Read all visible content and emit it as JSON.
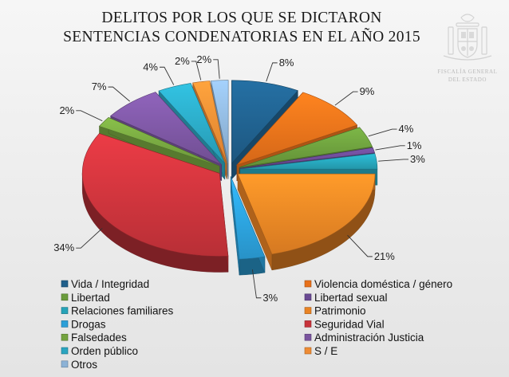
{
  "chart_data": {
    "type": "pie",
    "title_lines": [
      "DELITOS  POR LOS QUE SE DICTARON",
      "SENTENCIAS CONDENATORIAS EN EL AÑO 2015"
    ],
    "start_angle_deg": 0,
    "slices": [
      {
        "name": "Vida / Integridad",
        "value": 8,
        "label": "8%",
        "color": "#1f5f8b"
      },
      {
        "name": "Violencia doméstica / género",
        "value": 9,
        "label": "9%",
        "color": "#e8701a"
      },
      {
        "name": "Libertad",
        "value": 4,
        "label": "4%",
        "color": "#6a9b3c"
      },
      {
        "name": "Libertad sexual",
        "value": 1,
        "label": "1%",
        "color": "#6a4a93"
      },
      {
        "name": "Relaciones familiares",
        "value": 3,
        "label": "3%",
        "color": "#26a3b8"
      },
      {
        "name": "Patrimonio",
        "value": 21,
        "label": "21%",
        "color": "#e98324"
      },
      {
        "name": "Drogas",
        "value": 3,
        "label": "3%",
        "color": "#2b9fd8"
      },
      {
        "name": "Seguridad Vial",
        "value": 34,
        "label": "34%",
        "color": "#c8333b"
      },
      {
        "name": "Falsedades",
        "value": 2,
        "label": "2%",
        "color": "#74a33f"
      },
      {
        "name": "Administración Justicia",
        "value": 7,
        "label": "7%",
        "color": "#7a559f"
      },
      {
        "name": "Orden público",
        "value": 4,
        "label": "4%",
        "color": "#2aa5c0"
      },
      {
        "name": "S / E",
        "value": 2,
        "label": "2%",
        "color": "#ee8b34"
      },
      {
        "name": "Otros",
        "value": 2,
        "label": "2%",
        "color": "#8cb2d6"
      }
    ],
    "legend": {
      "placement": "bottom",
      "order": [
        "Vida / Integridad",
        "Violencia doméstica / género",
        "Libertad",
        "Libertad sexual",
        "Relaciones familiares",
        "Patrimonio",
        "Drogas",
        "Seguridad Vial",
        "Falsedades",
        "Administración Justicia",
        "Orden público",
        "S / E",
        "Otros"
      ]
    }
  },
  "seal": {
    "icon": "coat-of-arms-icon",
    "lines": [
      "FISCALÍA GENERAL",
      "DEL ESTADO"
    ]
  }
}
